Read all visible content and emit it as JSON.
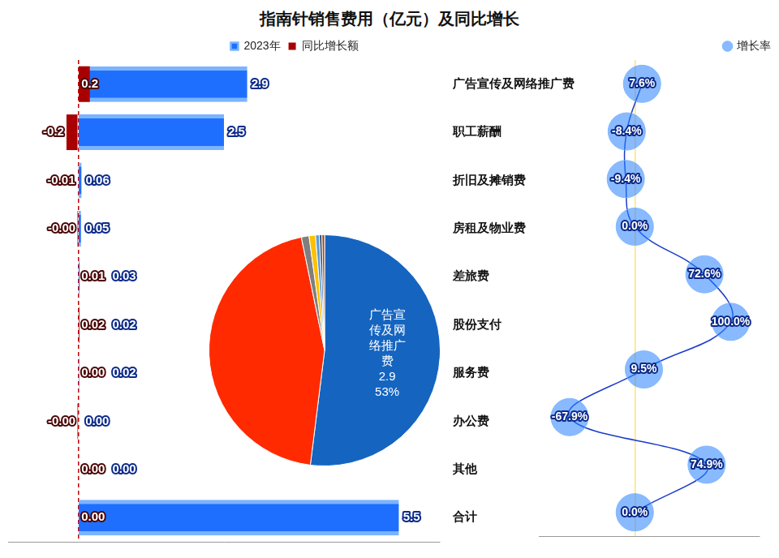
{
  "chart_data": [
    {
      "type": "bar",
      "title": "指南针销售费用（亿元）及同比增长",
      "orientation": "horizontal",
      "categories": [
        "广告宣传及网络推广费",
        "职工薪酬",
        "折旧及摊销费",
        "房租及物业费",
        "差旅费",
        "股份支付",
        "服务费",
        "办公费",
        "其他",
        "合计"
      ],
      "series": [
        {
          "name": "2023年",
          "color": "#1f6fff",
          "values": [
            2.9,
            2.5,
            0.06,
            0.05,
            0.03,
            0.02,
            0.02,
            0,
            0,
            5.5
          ],
          "value_labels": [
            "2.9",
            "2.5",
            "0.06",
            "0.05",
            "0.03",
            "0.02",
            "0.02",
            "0.00",
            "0.00",
            "5.5"
          ]
        },
        {
          "name": "同比增长额",
          "color": "#a80000",
          "values": [
            0.2,
            -0.2,
            -0.01,
            -0.001,
            0.01,
            0.02,
            0,
            -0.001,
            0,
            0
          ],
          "value_labels": [
            "0.2",
            "-0.2",
            "-0.01",
            "-0.00",
            "0.01",
            "0.02",
            "0.00",
            "-0.00",
            "0.00",
            "0.00"
          ]
        }
      ],
      "xlim": [
        -1.2,
        6.2
      ],
      "xticks": [
        0
      ],
      "grid": true,
      "tick_labels": "y",
      "data_labels": true,
      "legend": "top"
    },
    {
      "type": "line",
      "orientation": "horizontal",
      "categories": [
        "广告宣传及网络推广费",
        "职工薪酬",
        "折旧及摊销费",
        "房租及物业费",
        "差旅费",
        "股份支付",
        "服务费",
        "办公费",
        "其他",
        "合计"
      ],
      "series": [
        {
          "name": "增长率",
          "color": "#1a3ccc",
          "marker": "circle",
          "line_style": "solid",
          "values": [
            7.6,
            -8.4,
            -9.4,
            0.0,
            72.6,
            100.0,
            9.5,
            -67.9,
            74.9,
            0.0
          ],
          "value_labels": [
            "7.6%",
            "-8.4%",
            "-9.4%",
            "0.0%",
            "72.6%",
            "100.0%",
            "9.5%",
            "-67.9%",
            "74.9%",
            "0.0%"
          ]
        }
      ],
      "xlim": [
        -100,
        130
      ],
      "xticks": [
        0
      ],
      "grid": true,
      "tick_labels": false,
      "data_labels": true,
      "legend": "top right"
    },
    {
      "type": "pie",
      "categories": [
        "广告宣传及网络推广费",
        null,
        null,
        null,
        null,
        null,
        null,
        null,
        null
      ],
      "values": [
        2.9,
        2.5,
        0.06,
        0.05,
        0.03,
        0.02,
        0.02,
        0,
        0
      ],
      "percent_labels": [
        "53%",
        null,
        null,
        null,
        null,
        null,
        null,
        null,
        null
      ],
      "colors": [
        "#1565c0",
        "#ff2a00",
        "#7f7f7f",
        "#ffc000",
        "#5b9bd5",
        "#264478",
        "#9e480e",
        "#636363",
        "#997300"
      ],
      "data_labels": true
    }
  ]
}
